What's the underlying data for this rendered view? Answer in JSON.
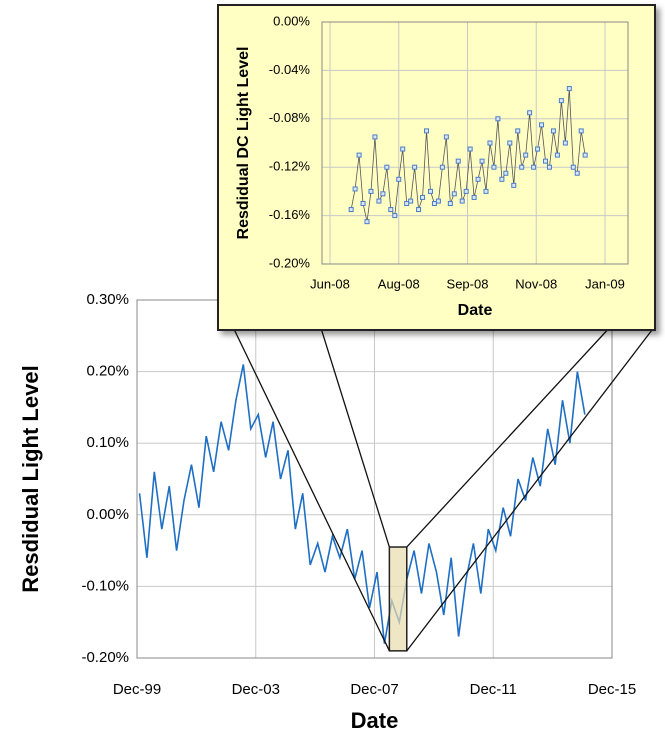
{
  "chart_data": [
    {
      "type": "line",
      "x_label": "Date",
      "y_label": "Resdidual Light Level",
      "xlim": [
        "1999-12",
        "2015-12"
      ],
      "xticks": [
        {
          "value": "1999-12",
          "label": "Dec-99"
        },
        {
          "value": "2003-12",
          "label": "Dec-03"
        },
        {
          "value": "2007-12",
          "label": "Dec-07"
        },
        {
          "value": "2011-12",
          "label": "Dec-11"
        },
        {
          "value": "2015-12",
          "label": "Dec-15"
        }
      ],
      "ylim": [
        -0.2,
        0.3
      ],
      "yticks": [
        {
          "value": -0.2,
          "label": "-0.20%"
        },
        {
          "value": -0.1,
          "label": "-0.10%"
        },
        {
          "value": 0,
          "label": "0.00%"
        },
        {
          "value": 0.1,
          "label": "0.10%"
        },
        {
          "value": 0.2,
          "label": "0.20%"
        },
        {
          "value": 0.3,
          "label": "0.30%"
        }
      ],
      "grid": true,
      "x": [
        "2000-01",
        "2000-04",
        "2000-07",
        "2000-10",
        "2001-01",
        "2001-04",
        "2001-07",
        "2001-10",
        "2002-01",
        "2002-04",
        "2002-07",
        "2002-10",
        "2003-01",
        "2003-04",
        "2003-07",
        "2003-10",
        "2004-01",
        "2004-04",
        "2004-07",
        "2004-10",
        "2005-01",
        "2005-04",
        "2005-07",
        "2005-10",
        "2006-01",
        "2006-04",
        "2006-07",
        "2006-10",
        "2007-01",
        "2007-04",
        "2007-07",
        "2007-10",
        "2008-01",
        "2008-04",
        "2008-07",
        "2008-10",
        "2009-01",
        "2009-04",
        "2009-07",
        "2009-10",
        "2010-01",
        "2010-04",
        "2010-07",
        "2010-10",
        "2011-01",
        "2011-04",
        "2011-07",
        "2011-10",
        "2012-01",
        "2012-04",
        "2012-07",
        "2012-10",
        "2013-01",
        "2013-04",
        "2013-07",
        "2013-10",
        "2014-01",
        "2014-04",
        "2014-07",
        "2014-10",
        "2015-01"
      ],
      "series": [
        {
          "color": "#1f6fc5",
          "values": [
            0.03,
            -0.06,
            0.06,
            -0.02,
            0.04,
            -0.05,
            0.02,
            0.07,
            0.01,
            0.11,
            0.06,
            0.13,
            0.09,
            0.16,
            0.21,
            0.12,
            0.14,
            0.08,
            0.13,
            0.05,
            0.09,
            -0.02,
            0.03,
            -0.07,
            -0.04,
            -0.08,
            -0.03,
            -0.06,
            -0.02,
            -0.09,
            -0.05,
            -0.13,
            -0.08,
            -0.18,
            -0.12,
            -0.15,
            -0.09,
            -0.05,
            -0.11,
            -0.04,
            -0.08,
            -0.14,
            -0.06,
            -0.17,
            -0.09,
            -0.04,
            -0.11,
            -0.02,
            -0.05,
            0.01,
            -0.03,
            0.05,
            0.02,
            0.08,
            0.04,
            0.12,
            0.07,
            0.16,
            0.1,
            0.2,
            0.14
          ]
        }
      ],
      "zoom_box": {
        "x": [
          "2008-06",
          "2009-01"
        ],
        "y": [
          -0.19,
          -0.045
        ],
        "color": "#e8dcae"
      }
    },
    {
      "type": "line",
      "x_label": "Date",
      "y_label": "Resdidual DC Light Level",
      "xlim": [
        "2008-06-15",
        "2009-01-09"
      ],
      "xticks": [
        {
          "value": "2008-06-15",
          "label": "Jun-08"
        },
        {
          "value": "2008-08-06",
          "label": "Aug-08"
        },
        {
          "value": "2008-09-27",
          "label": "Sep-08"
        },
        {
          "value": "2008-11-18",
          "label": "Nov-08"
        },
        {
          "value": "2009-01-09",
          "label": "Jan-09"
        }
      ],
      "ylim": [
        -0.2,
        0
      ],
      "yticks": [
        {
          "value": -0.2,
          "label": "-0.20%"
        },
        {
          "value": -0.16,
          "label": "-0.16%"
        },
        {
          "value": -0.12,
          "label": "-0.12%"
        },
        {
          "value": -0.08,
          "label": "-0.08%"
        },
        {
          "value": -0.04,
          "label": "-0.04%"
        },
        {
          "value": 0,
          "label": "0.00%"
        }
      ],
      "grid": true,
      "background": "#ffffc4",
      "x": [
        "2008-07-01",
        "2008-07-04",
        "2008-07-07",
        "2008-07-10",
        "2008-07-13",
        "2008-07-16",
        "2008-07-19",
        "2008-07-22",
        "2008-07-25",
        "2008-07-28",
        "2008-07-31",
        "2008-08-03",
        "2008-08-06",
        "2008-08-09",
        "2008-08-12",
        "2008-08-15",
        "2008-08-18",
        "2008-08-21",
        "2008-08-24",
        "2008-08-27",
        "2008-08-30",
        "2008-09-02",
        "2008-09-05",
        "2008-09-08",
        "2008-09-11",
        "2008-09-14",
        "2008-09-17",
        "2008-09-20",
        "2008-09-23",
        "2008-09-26",
        "2008-09-29",
        "2008-10-02",
        "2008-10-05",
        "2008-10-08",
        "2008-10-11",
        "2008-10-14",
        "2008-10-17",
        "2008-10-20",
        "2008-10-23",
        "2008-10-26",
        "2008-10-29",
        "2008-11-01",
        "2008-11-04",
        "2008-11-07",
        "2008-11-10",
        "2008-11-13",
        "2008-11-16",
        "2008-11-19",
        "2008-11-22",
        "2008-11-25",
        "2008-11-28",
        "2008-12-01",
        "2008-12-04",
        "2008-12-07",
        "2008-12-10",
        "2008-12-13",
        "2008-12-16",
        "2008-12-19",
        "2008-12-22",
        "2008-12-25"
      ],
      "series": [
        {
          "color": "#555555",
          "marker_color": "#4a7cc9",
          "values": [
            -0.155,
            -0.138,
            -0.11,
            -0.15,
            -0.165,
            -0.14,
            -0.095,
            -0.148,
            -0.142,
            -0.12,
            -0.155,
            -0.16,
            -0.13,
            -0.105,
            -0.15,
            -0.148,
            -0.12,
            -0.155,
            -0.145,
            -0.09,
            -0.14,
            -0.15,
            -0.148,
            -0.12,
            -0.095,
            -0.15,
            -0.142,
            -0.115,
            -0.148,
            -0.14,
            -0.105,
            -0.145,
            -0.13,
            -0.115,
            -0.14,
            -0.1,
            -0.12,
            -0.08,
            -0.13,
            -0.125,
            -0.1,
            -0.135,
            -0.09,
            -0.12,
            -0.11,
            -0.075,
            -0.12,
            -0.105,
            -0.085,
            -0.115,
            -0.12,
            -0.09,
            -0.11,
            -0.065,
            -0.1,
            -0.055,
            -0.12,
            -0.125,
            -0.09,
            -0.11
          ]
        }
      ]
    }
  ]
}
